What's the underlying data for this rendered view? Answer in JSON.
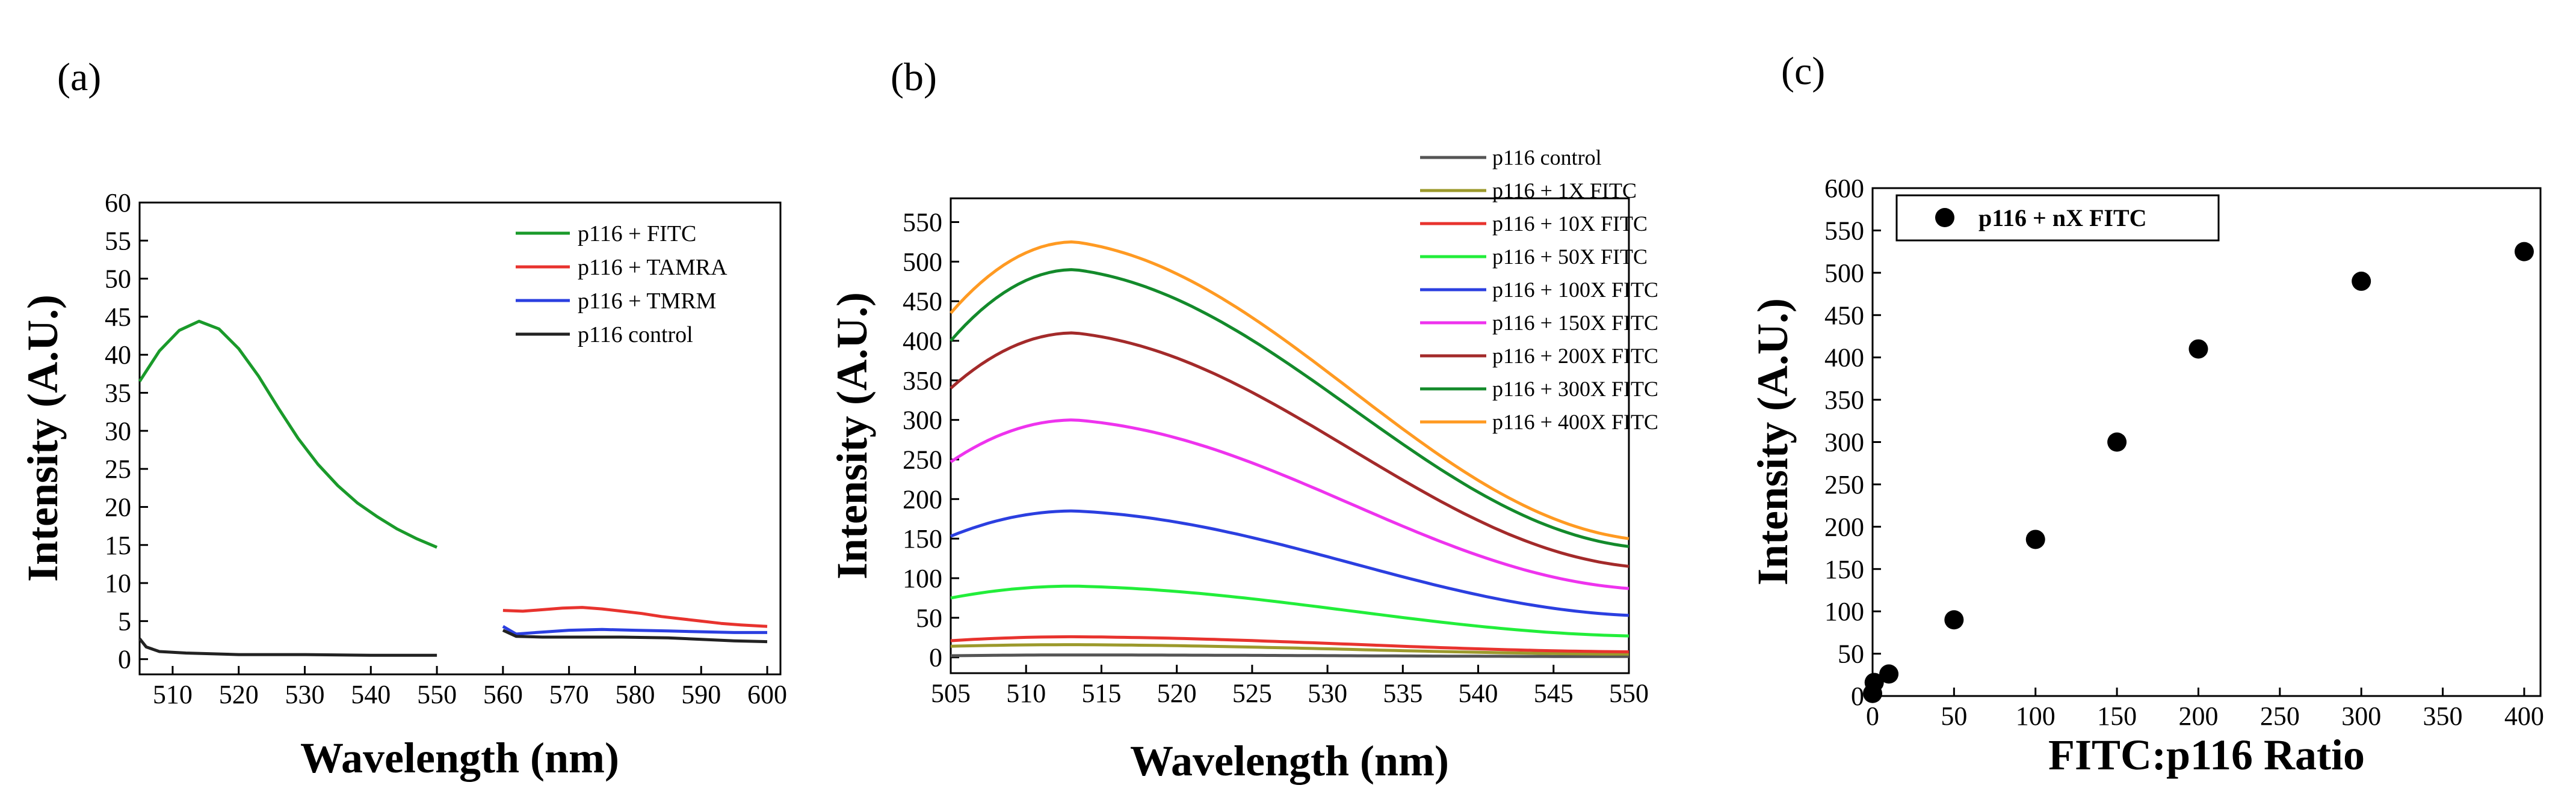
{
  "chart_data": [
    {
      "panel": "(a)",
      "type": "line",
      "xlabel": "Wavelength (nm)",
      "ylabel": "Intensity (A.U.)",
      "xlim": [
        505,
        602
      ],
      "ylim": [
        -2,
        60
      ],
      "xticks": [
        510,
        520,
        530,
        540,
        550,
        560,
        570,
        580,
        590,
        600
      ],
      "yticks": [
        0,
        5,
        10,
        15,
        20,
        25,
        30,
        35,
        40,
        45,
        50,
        55,
        60
      ],
      "legend_position": "top-right",
      "series": [
        {
          "name": "p116 + FITC",
          "color": "#1a9a2a",
          "segments": [
            [
              [
                505,
                36.5
              ],
              [
                508,
                40.5
              ],
              [
                511,
                43.2
              ],
              [
                514,
                44.4
              ],
              [
                517,
                43.4
              ],
              [
                520,
                40.8
              ],
              [
                523,
                37.2
              ],
              [
                526,
                33.0
              ],
              [
                529,
                29.0
              ],
              [
                532,
                25.6
              ],
              [
                535,
                22.8
              ],
              [
                538,
                20.5
              ],
              [
                541,
                18.7
              ],
              [
                544,
                17.1
              ],
              [
                547,
                15.8
              ],
              [
                550,
                14.7
              ]
            ]
          ]
        },
        {
          "name": "p116 + TAMRA",
          "color": "#e8332e",
          "segments": [
            [
              [
                560,
                6.4
              ],
              [
                563,
                6.3
              ],
              [
                566,
                6.5
              ],
              [
                569,
                6.7
              ],
              [
                572,
                6.8
              ],
              [
                575,
                6.6
              ],
              [
                578,
                6.3
              ],
              [
                581,
                6.0
              ],
              [
                584,
                5.6
              ],
              [
                587,
                5.3
              ],
              [
                590,
                5.0
              ],
              [
                593,
                4.7
              ],
              [
                596,
                4.5
              ],
              [
                600,
                4.3
              ]
            ]
          ]
        },
        {
          "name": "p116 + TMRM",
          "color": "#2b3fe0",
          "segments": [
            [
              [
                560,
                4.3
              ],
              [
                562,
                3.3
              ],
              [
                565,
                3.5
              ],
              [
                570,
                3.8
              ],
              [
                575,
                3.9
              ],
              [
                580,
                3.8
              ],
              [
                585,
                3.7
              ],
              [
                590,
                3.6
              ],
              [
                595,
                3.5
              ],
              [
                600,
                3.5
              ]
            ]
          ]
        },
        {
          "name": "p116 control",
          "color": "#222222",
          "segments": [
            [
              [
                505,
                2.7
              ],
              [
                506,
                1.6
              ],
              [
                508,
                1.0
              ],
              [
                512,
                0.8
              ],
              [
                520,
                0.6
              ],
              [
                530,
                0.6
              ],
              [
                540,
                0.5
              ],
              [
                550,
                0.5
              ]
            ],
            [
              [
                560,
                3.8
              ],
              [
                562,
                3.0
              ],
              [
                566,
                2.9
              ],
              [
                572,
                2.9
              ],
              [
                578,
                2.9
              ],
              [
                585,
                2.8
              ],
              [
                590,
                2.6
              ],
              [
                595,
                2.4
              ],
              [
                600,
                2.3
              ]
            ]
          ]
        }
      ]
    },
    {
      "panel": "(b)",
      "type": "line",
      "xlabel": "Wavelength (nm)",
      "ylabel": "Intensity (A.U.)",
      "xlim": [
        505,
        550
      ],
      "ylim": [
        -20,
        580
      ],
      "xticks": [
        505,
        510,
        515,
        520,
        525,
        530,
        535,
        540,
        545,
        550
      ],
      "yticks": [
        0,
        50,
        100,
        150,
        200,
        250,
        300,
        350,
        400,
        450,
        500,
        550
      ],
      "legend_position": "top-right",
      "series": [
        {
          "name": "p116 control",
          "color": "#555555",
          "start": 2,
          "peak": 3,
          "end": 1
        },
        {
          "name": "p116 + 1X FITC",
          "color": "#9c9a2c",
          "start": 14,
          "peak": 16,
          "end": 4
        },
        {
          "name": "p116 + 10X FITC",
          "color": "#e8332e",
          "start": 21,
          "peak": 26,
          "end": 7
        },
        {
          "name": "p116 + 50X FITC",
          "color": "#22ee3a",
          "start": 75,
          "peak": 90,
          "end": 27
        },
        {
          "name": "p116 + 100X FITC",
          "color": "#2b3fe0",
          "start": 153,
          "peak": 185,
          "end": 53
        },
        {
          "name": "p116 + 150X FITC",
          "color": "#ee33ee",
          "start": 247,
          "peak": 300,
          "end": 87
        },
        {
          "name": "p116 + 200X FITC",
          "color": "#a32a2a",
          "start": 340,
          "peak": 410,
          "end": 115
        },
        {
          "name": "p116 + 300X FITC",
          "color": "#138a2b",
          "start": 400,
          "peak": 490,
          "end": 140
        },
        {
          "name": "p116 + 400X FITC",
          "color": "#ff9a22",
          "start": 435,
          "peak": 525,
          "end": 150
        }
      ]
    },
    {
      "panel": "(c)",
      "type": "scatter",
      "xlabel": "FITC:p116 Ratio",
      "ylabel": "Intensity (A.U.)",
      "xlim": [
        0,
        410
      ],
      "ylim": [
        0,
        600
      ],
      "xticks": [
        0,
        50,
        100,
        150,
        200,
        250,
        300,
        350,
        400
      ],
      "yticks": [
        0,
        50,
        100,
        150,
        200,
        250,
        300,
        350,
        400,
        450,
        500,
        550,
        600
      ],
      "legend_position": "top-left",
      "series": [
        {
          "name": "p116 + nX FITC",
          "color": "#000000",
          "x": [
            0,
            1,
            10,
            50,
            100,
            150,
            200,
            300,
            400
          ],
          "y": [
            3,
            16,
            26,
            90,
            185,
            300,
            410,
            490,
            525
          ]
        }
      ]
    }
  ]
}
